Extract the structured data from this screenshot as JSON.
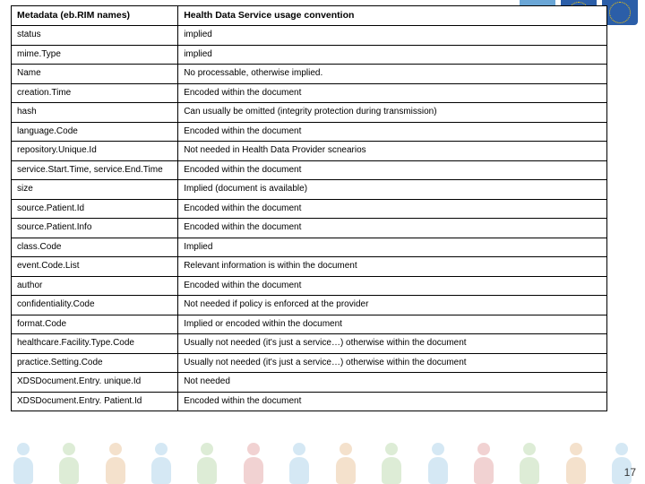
{
  "pageNumber": "17",
  "table": {
    "columns": [
      "Metadata (eb.RIM names)",
      "Health Data Service usage convention"
    ],
    "rows": [
      [
        "status",
        "implied"
      ],
      [
        "mime.Type",
        "implied"
      ],
      [
        "Name",
        "No processable, otherwise implied."
      ],
      [
        "creation.Time",
        "Encoded within the document"
      ],
      [
        "hash",
        "Can usually be omitted (integrity protection during transmission)"
      ],
      [
        "language.Code",
        "Encoded within the document"
      ],
      [
        "repository.Unique.Id",
        "Not needed in Health Data Provider scnearios"
      ],
      [
        "service.Start.Time, service.End.Time",
        "Encoded within the document"
      ],
      [
        "size",
        "Implied (document is available)"
      ],
      [
        "source.Patient.Id",
        "Encoded within the document"
      ],
      [
        "source.Patient.Info",
        "Encoded within the document"
      ],
      [
        "class.Code",
        "Implied"
      ],
      [
        "event.Code.List",
        "Relevant information is within the document"
      ],
      [
        "author",
        "Encoded within the document"
      ],
      [
        "confidentiality.Code",
        "Not needed if policy is enforced at the provider"
      ],
      [
        "format.Code",
        "Implied or encoded within the document"
      ],
      [
        "healthcare.Facility.Type.Code",
        "Usually not needed (it's just a service…) otherwise within the document"
      ],
      [
        "practice.Setting.Code",
        "Usually not needed (it's just a service…) otherwise within the document"
      ],
      [
        "XDSDocument.Entry. unique.Id",
        "Not needed"
      ],
      [
        "XDSDocument.Entry. Patient.Id",
        "Encoded within the document"
      ]
    ]
  },
  "bgPeopleColors": [
    "#5aa5d6",
    "#7bb661",
    "#d68a3a",
    "#5aa5d6",
    "#7bb661",
    "#c94f4f",
    "#5aa5d6",
    "#d68a3a",
    "#7bb661",
    "#5aa5d6",
    "#c94f4f",
    "#7bb661",
    "#d68a3a",
    "#5aa5d6"
  ]
}
